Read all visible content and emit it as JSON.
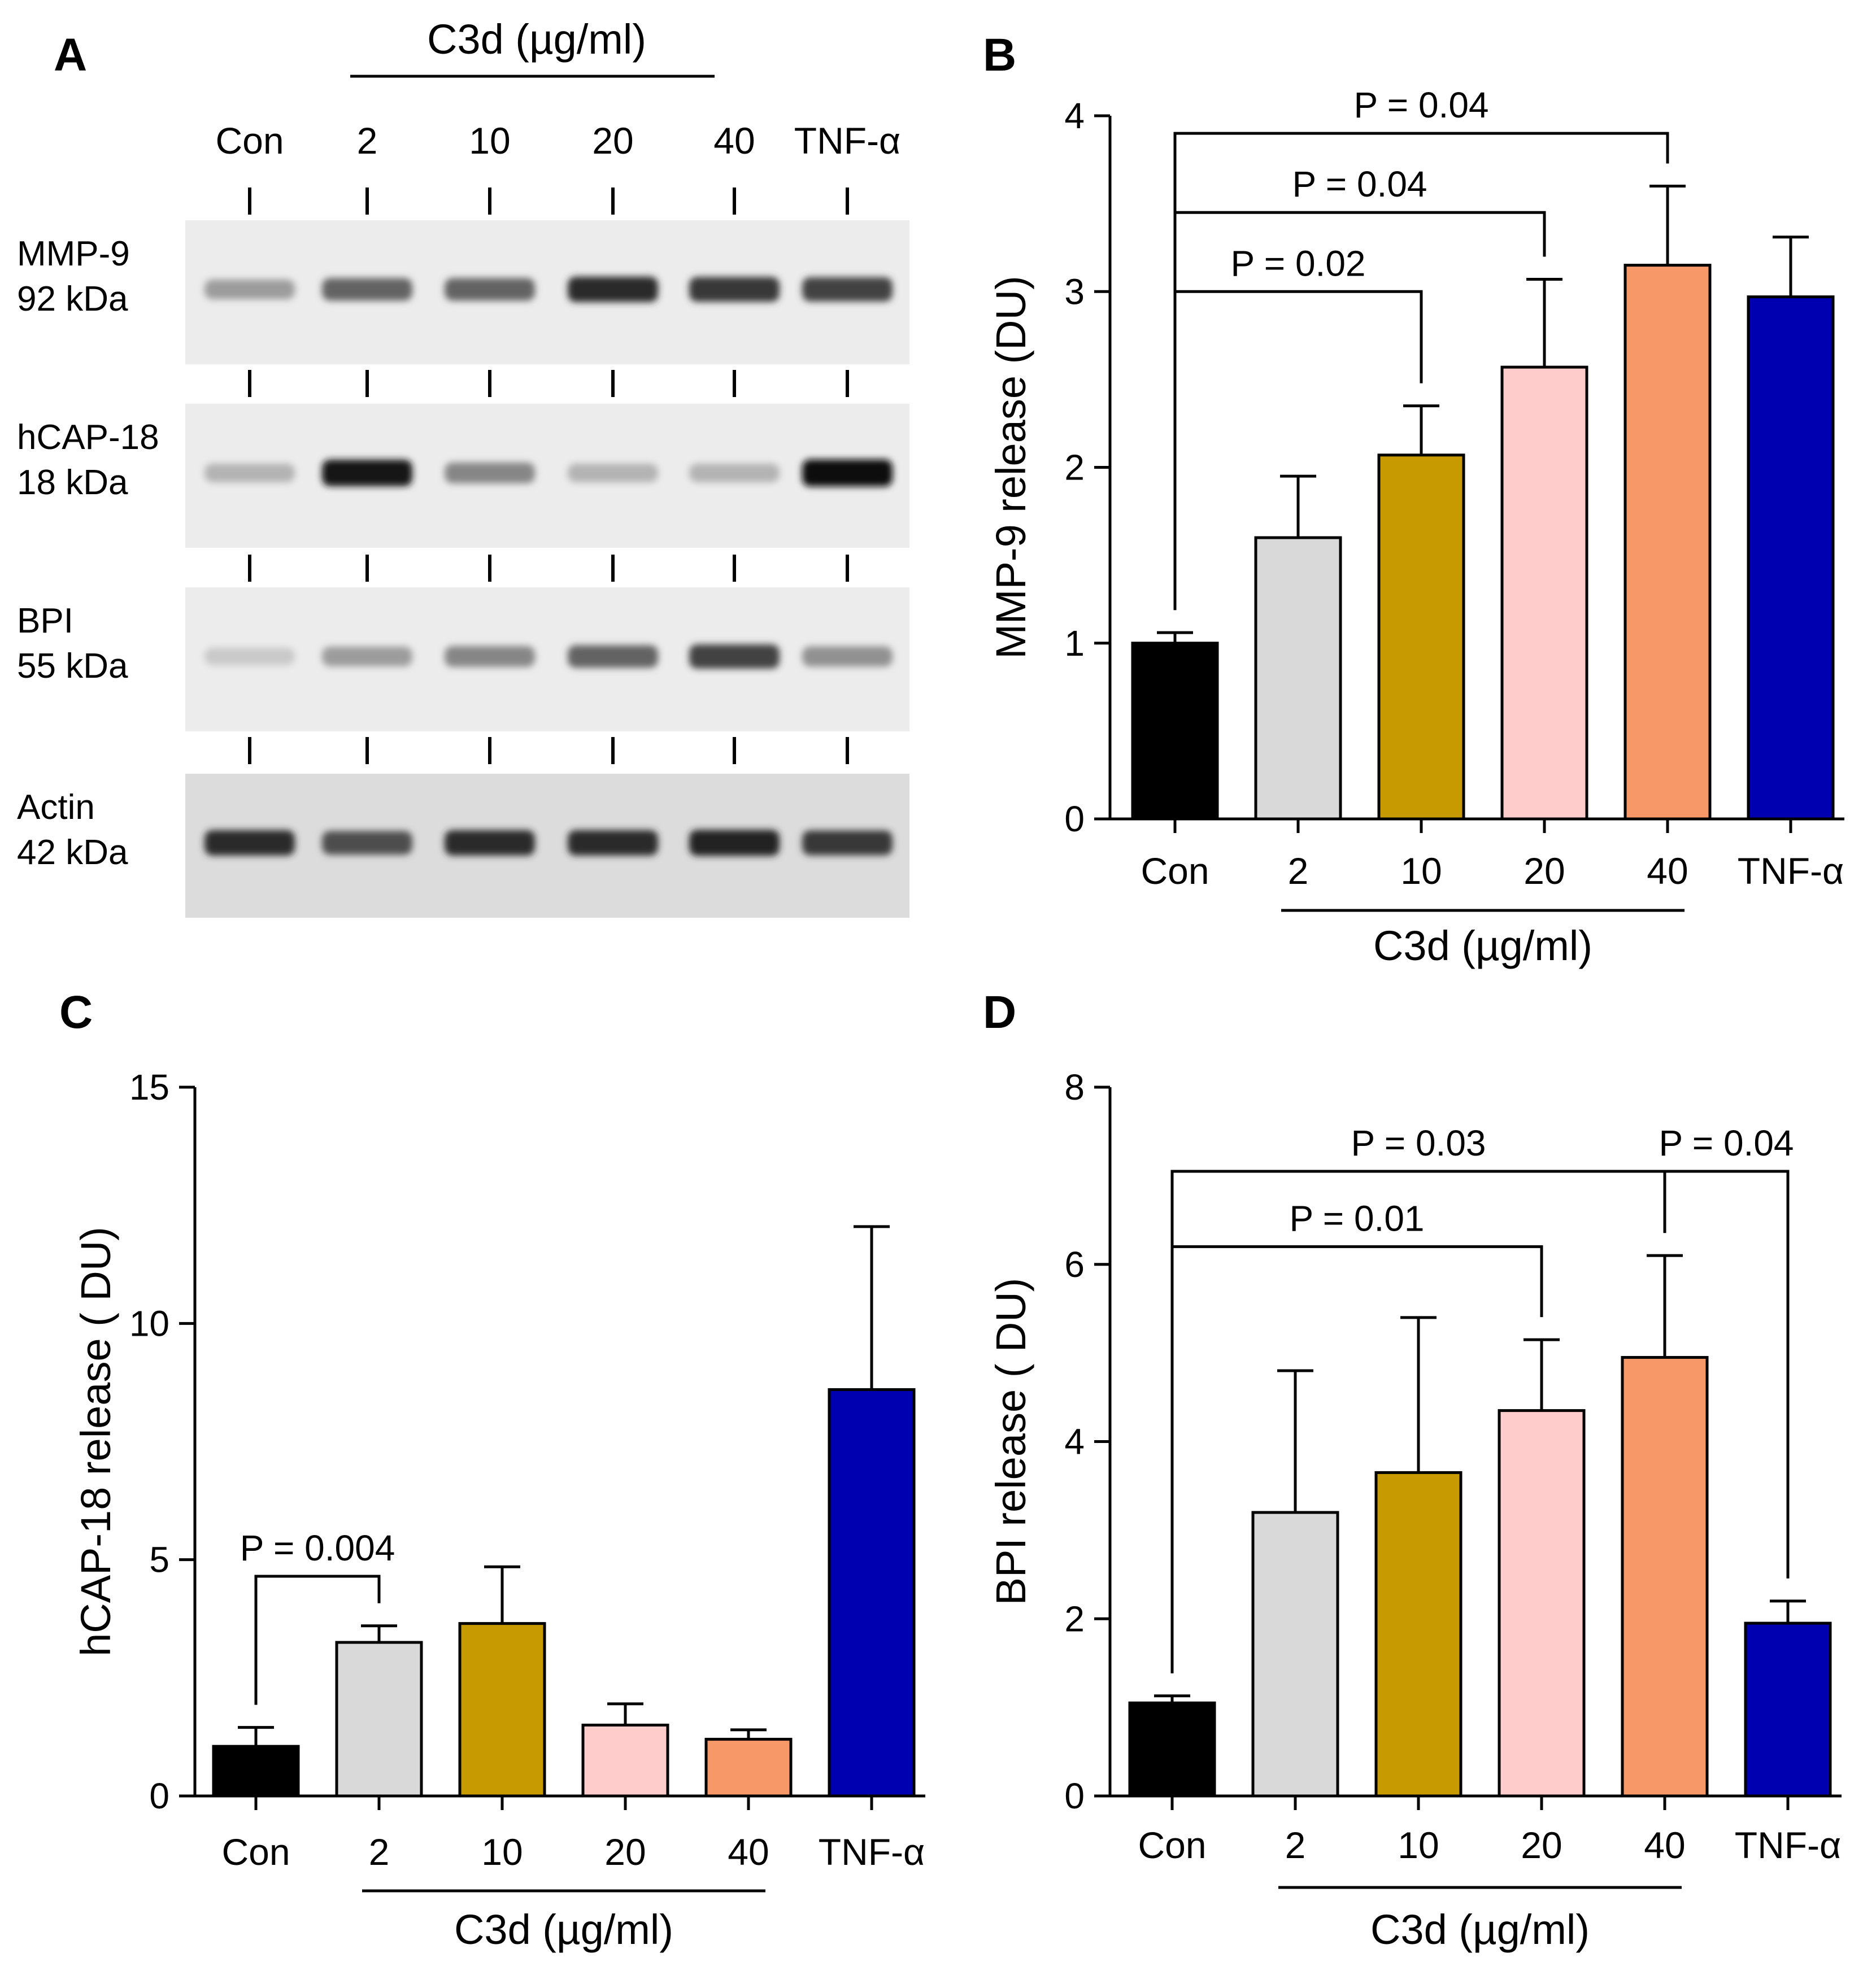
{
  "blot": {
    "panel": "A",
    "group_label": "C3d (µg/ml)",
    "lanes": [
      "Con",
      "2",
      "10",
      "20",
      "40",
      "TNF-α"
    ],
    "bands": [
      {
        "name": "MMP-9",
        "size": "92 kDa",
        "intensity": [
          0.35,
          0.6,
          0.6,
          0.85,
          0.8,
          0.75
        ]
      },
      {
        "name": "hCAP-18",
        "size": "18 kDa",
        "intensity": [
          0.25,
          0.95,
          0.45,
          0.25,
          0.25,
          1.0
        ]
      },
      {
        "name": "BPI",
        "size": "55 kDa",
        "intensity": [
          0.15,
          0.35,
          0.45,
          0.6,
          0.75,
          0.4
        ]
      },
      {
        "name": "Actin",
        "size": "42 kDa",
        "intensity": [
          0.85,
          0.7,
          0.85,
          0.85,
          0.9,
          0.8
        ]
      }
    ]
  },
  "chart_data": [
    {
      "panel": "B",
      "type": "bar",
      "categories": [
        "Con",
        "2",
        "10",
        "20",
        "40",
        "TNF-α"
      ],
      "values": [
        1.0,
        1.6,
        2.07,
        2.57,
        3.15,
        2.97
      ],
      "errors": [
        0.06,
        0.35,
        0.28,
        0.5,
        0.45,
        0.34
      ],
      "colors": [
        "#000000",
        "#d9d9d9",
        "#c69a00",
        "#ffcccc",
        "#f79868",
        "#0000b0"
      ],
      "ylabel": "MMP-9 release (DU)",
      "ylim": [
        0,
        4
      ],
      "yticks": [
        0,
        1,
        2,
        3,
        4
      ],
      "group_label": "C3d (µg/ml)",
      "comparisons": [
        {
          "from": 0,
          "to": 2,
          "label": "P = 0.02",
          "y": 3.0
        },
        {
          "from": 0,
          "to": 3,
          "label": "P = 0.04",
          "y": 3.45
        },
        {
          "from": 0,
          "to": 4,
          "label": "P = 0.04",
          "y": 3.9
        }
      ]
    },
    {
      "panel": "C",
      "type": "bar",
      "categories": [
        "Con",
        "2",
        "10",
        "20",
        "40",
        "TNF-α"
      ],
      "values": [
        1.05,
        3.25,
        3.65,
        1.5,
        1.2,
        8.6
      ],
      "errors": [
        0.4,
        0.35,
        1.2,
        0.45,
        0.2,
        3.45
      ],
      "colors": [
        "#000000",
        "#d9d9d9",
        "#c69a00",
        "#ffcccc",
        "#f79868",
        "#0000b0"
      ],
      "ylabel": "hCAP-18  release ( DU)",
      "ylim": [
        0,
        15
      ],
      "yticks": [
        0,
        5,
        10,
        15
      ],
      "group_label": "C3d (µg/ml)",
      "comparisons": [
        {
          "from": 0,
          "to": 1,
          "label": "P = 0.004",
          "y": 4.65
        }
      ]
    },
    {
      "panel": "D",
      "type": "bar",
      "categories": [
        "Con",
        "2",
        "10",
        "20",
        "40",
        "TNF-α"
      ],
      "values": [
        1.05,
        3.2,
        3.65,
        4.35,
        4.95,
        1.95
      ],
      "errors": [
        0.08,
        1.6,
        1.75,
        0.8,
        1.15,
        0.25
      ],
      "colors": [
        "#000000",
        "#d9d9d9",
        "#c69a00",
        "#ffcccc",
        "#f79868",
        "#0000b0"
      ],
      "ylabel": "BPI  release ( DU)",
      "ylim": [
        0,
        8
      ],
      "yticks": [
        0,
        2,
        4,
        6,
        8
      ],
      "group_label": "C3d (µg/ml)",
      "comparisons": [
        {
          "from": 0,
          "to": 3,
          "label": "P = 0.01",
          "y": 6.2
        },
        {
          "from": 0,
          "to": 4,
          "label": "P = 0.03",
          "y": 7.05
        },
        {
          "from": 4,
          "to": 5,
          "label": "P = 0.04",
          "y": 7.05
        }
      ]
    }
  ]
}
